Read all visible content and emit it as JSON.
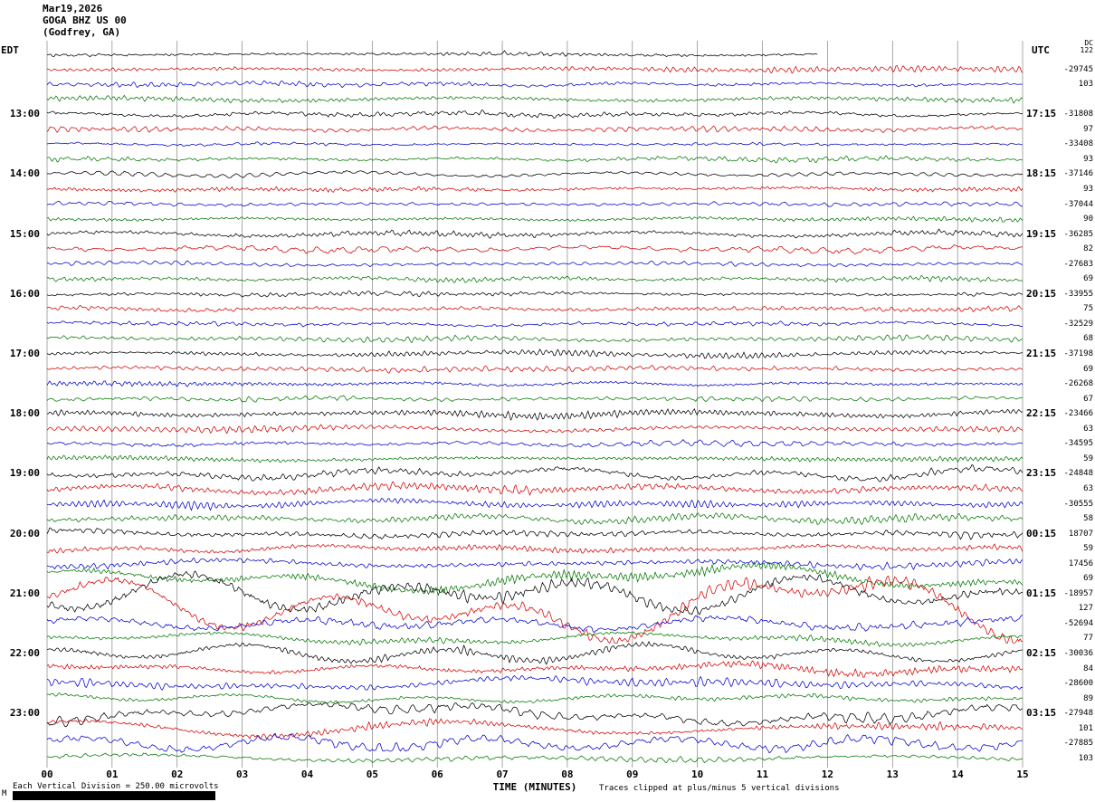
{
  "header": {
    "date": "Mar19,2026",
    "station": "GOGA BHZ US 00",
    "location": "(Godfrey, GA)"
  },
  "axes": {
    "left_tz": "EDT",
    "right_tz": "UTC",
    "x_label": "TIME (MINUTES)",
    "x_ticks": [
      "00",
      "01",
      "02",
      "03",
      "04",
      "05",
      "06",
      "07",
      "08",
      "09",
      "10",
      "11",
      "12",
      "13",
      "14",
      "15"
    ]
  },
  "corner": {
    "line1": "DC",
    "line2": "122"
  },
  "footer": {
    "scale_note": "Each Vertical Division =  250.00 microvolts",
    "clip_note": "Traces clipped at plus/minus 5 vertical divisions",
    "watermark": "M"
  },
  "colors": {
    "black": "#000000",
    "red": "#d40000",
    "blue": "#0000cc",
    "green": "#007700",
    "grid": "#707070"
  },
  "left_labels": [
    {
      "row": 4,
      "text": "13:00"
    },
    {
      "row": 8,
      "text": "14:00"
    },
    {
      "row": 12,
      "text": "15:00"
    },
    {
      "row": 16,
      "text": "16:00"
    },
    {
      "row": 20,
      "text": "17:00"
    },
    {
      "row": 24,
      "text": "18:00"
    },
    {
      "row": 28,
      "text": "19:00"
    },
    {
      "row": 32,
      "text": "20:00"
    },
    {
      "row": 36,
      "text": "21:00"
    },
    {
      "row": 40,
      "text": "22:00"
    },
    {
      "row": 44,
      "text": "23:00"
    }
  ],
  "right_labels": [
    {
      "row": 4,
      "text": "17:15"
    },
    {
      "row": 8,
      "text": "18:15"
    },
    {
      "row": 12,
      "text": "19:15"
    },
    {
      "row": 16,
      "text": "20:15"
    },
    {
      "row": 20,
      "text": "21:15"
    },
    {
      "row": 24,
      "text": "22:15"
    },
    {
      "row": 28,
      "text": "23:15"
    },
    {
      "row": 32,
      "text": "00:15"
    },
    {
      "row": 36,
      "text": "01:15"
    },
    {
      "row": 40,
      "text": "02:15"
    },
    {
      "row": 44,
      "text": "03:15"
    }
  ],
  "right_numbers": [
    {
      "row": 1,
      "text": "-29745"
    },
    {
      "row": 2,
      "text": "103"
    },
    {
      "row": 4,
      "text": "-31808"
    },
    {
      "row": 5,
      "text": "97"
    },
    {
      "row": 6,
      "text": "-33408"
    },
    {
      "row": 7,
      "text": "93"
    },
    {
      "row": 8,
      "text": "-37146"
    },
    {
      "row": 9,
      "text": "93"
    },
    {
      "row": 10,
      "text": "-37044"
    },
    {
      "row": 11,
      "text": "90"
    },
    {
      "row": 12,
      "text": "-36285"
    },
    {
      "row": 13,
      "text": "82"
    },
    {
      "row": 14,
      "text": "-27683"
    },
    {
      "row": 15,
      "text": "69"
    },
    {
      "row": 16,
      "text": "-33955"
    },
    {
      "row": 17,
      "text": "75"
    },
    {
      "row": 18,
      "text": "-32529"
    },
    {
      "row": 19,
      "text": "68"
    },
    {
      "row": 20,
      "text": "-37198"
    },
    {
      "row": 21,
      "text": "69"
    },
    {
      "row": 22,
      "text": "-26268"
    },
    {
      "row": 23,
      "text": "67"
    },
    {
      "row": 24,
      "text": "-23466"
    },
    {
      "row": 25,
      "text": "63"
    },
    {
      "row": 26,
      "text": "-34595"
    },
    {
      "row": 27,
      "text": "59"
    },
    {
      "row": 28,
      "text": "-24848"
    },
    {
      "row": 29,
      "text": "63"
    },
    {
      "row": 30,
      "text": "-30555"
    },
    {
      "row": 31,
      "text": "58"
    },
    {
      "row": 32,
      "text": "18707"
    },
    {
      "row": 33,
      "text": "59"
    },
    {
      "row": 34,
      "text": "17456"
    },
    {
      "row": 35,
      "text": "69"
    },
    {
      "row": 36,
      "text": "-18957"
    },
    {
      "row": 37,
      "text": "127"
    },
    {
      "row": 38,
      "text": "-52694"
    },
    {
      "row": 39,
      "text": "77"
    },
    {
      "row": 40,
      "text": "-30036"
    },
    {
      "row": 41,
      "text": "84"
    },
    {
      "row": 42,
      "text": "-28600"
    },
    {
      "row": 43,
      "text": "89"
    },
    {
      "row": 44,
      "text": "-27948"
    },
    {
      "row": 45,
      "text": "101"
    },
    {
      "row": 46,
      "text": "-27885"
    },
    {
      "row": 47,
      "text": "103"
    }
  ],
  "chart_data": {
    "type": "line",
    "title": "Helicorder seismogram GOGA BHZ US 00 (Godfrey, GA) Mar19,2026",
    "xlabel": "TIME (MINUTES)",
    "x_range": [
      0,
      15
    ],
    "minutes_per_line": 15,
    "lines_per_hour": 4,
    "color_cycle": [
      "black",
      "red",
      "blue",
      "green"
    ],
    "microvolts_per_division": 250.0,
    "clip_divisions": 5,
    "rows": [
      {
        "edt": "12:00",
        "color": "black",
        "amp": 1.1,
        "lf": 0.2,
        "end_frac": 0.79
      },
      {
        "edt": "12:15",
        "color": "red",
        "amp": 1.0,
        "lf": 0.2
      },
      {
        "edt": "12:30",
        "color": "blue",
        "amp": 0.9,
        "lf": 0.2
      },
      {
        "edt": "12:45",
        "color": "green",
        "amp": 0.95,
        "lf": 0.25
      },
      {
        "edt": "13:00",
        "color": "black",
        "amp": 1.15,
        "lf": 0.25
      },
      {
        "edt": "13:15",
        "color": "red",
        "amp": 1.0,
        "lf": 0.2
      },
      {
        "edt": "13:30",
        "color": "blue",
        "amp": 0.9,
        "lf": 0.2
      },
      {
        "edt": "13:45",
        "color": "green",
        "amp": 0.95,
        "lf": 0.2
      },
      {
        "edt": "14:00",
        "color": "black",
        "amp": 1.1,
        "lf": 0.25
      },
      {
        "edt": "14:15",
        "color": "red",
        "amp": 1.0,
        "lf": 0.2
      },
      {
        "edt": "14:30",
        "color": "blue",
        "amp": 0.9,
        "lf": 0.2
      },
      {
        "edt": "14:45",
        "color": "green",
        "amp": 0.95,
        "lf": 0.2
      },
      {
        "edt": "15:00",
        "color": "black",
        "amp": 1.1,
        "lf": 0.25
      },
      {
        "edt": "15:15",
        "color": "red",
        "amp": 1.15,
        "lf": 0.25
      },
      {
        "edt": "15:30",
        "color": "blue",
        "amp": 0.9,
        "lf": 0.2
      },
      {
        "edt": "15:45",
        "color": "green",
        "amp": 0.95,
        "lf": 0.2
      },
      {
        "edt": "16:00",
        "color": "black",
        "amp": 1.1,
        "lf": 0.25
      },
      {
        "edt": "16:15",
        "color": "red",
        "amp": 1.05,
        "lf": 0.25
      },
      {
        "edt": "16:30",
        "color": "blue",
        "amp": 0.95,
        "lf": 0.2
      },
      {
        "edt": "16:45",
        "color": "green",
        "amp": 1.0,
        "lf": 0.25
      },
      {
        "edt": "17:00",
        "color": "black",
        "amp": 1.1,
        "lf": 0.25
      },
      {
        "edt": "17:15",
        "color": "red",
        "amp": 1.0,
        "lf": 0.25
      },
      {
        "edt": "17:30",
        "color": "blue",
        "amp": 0.95,
        "lf": 0.2
      },
      {
        "edt": "17:45",
        "color": "green",
        "amp": 1.0,
        "lf": 0.25
      },
      {
        "edt": "18:00",
        "color": "black",
        "amp": 1.2,
        "lf": 0.3
      },
      {
        "edt": "18:15",
        "color": "red",
        "amp": 1.2,
        "lf": 0.3
      },
      {
        "edt": "18:30",
        "color": "blue",
        "amp": 1.05,
        "lf": 0.25
      },
      {
        "edt": "18:45",
        "color": "green",
        "amp": 1.0,
        "lf": 0.25
      },
      {
        "edt": "19:00",
        "color": "black",
        "amp": 1.6,
        "lf": 0.45
      },
      {
        "edt": "19:15",
        "color": "red",
        "amp": 1.5,
        "lf": 0.4
      },
      {
        "edt": "19:30",
        "color": "blue",
        "amp": 1.3,
        "lf": 0.35
      },
      {
        "edt": "19:45",
        "color": "green",
        "amp": 1.2,
        "lf": 0.3
      },
      {
        "edt": "20:00",
        "color": "black",
        "amp": 1.4,
        "lf": 0.4
      },
      {
        "edt": "20:15",
        "color": "red",
        "amp": 1.25,
        "lf": 0.35
      },
      {
        "edt": "20:30",
        "color": "blue",
        "amp": 1.4,
        "lf": 0.5
      },
      {
        "edt": "20:45",
        "color": "green",
        "amp": 1.9,
        "lf": 0.85
      },
      {
        "edt": "21:00",
        "color": "black",
        "amp": 2.6,
        "lf": 1.5
      },
      {
        "edt": "21:15",
        "color": "red",
        "amp": 2.6,
        "lf": 1.6
      },
      {
        "edt": "21:30",
        "color": "blue",
        "amp": 1.6,
        "lf": 0.8
      },
      {
        "edt": "21:45",
        "color": "green",
        "amp": 1.35,
        "lf": 0.6
      },
      {
        "edt": "22:00",
        "color": "black",
        "amp": 1.7,
        "lf": 0.8
      },
      {
        "edt": "22:15",
        "color": "red",
        "amp": 1.5,
        "lf": 0.65
      },
      {
        "edt": "22:30",
        "color": "blue",
        "amp": 1.45,
        "lf": 0.7
      },
      {
        "edt": "22:45",
        "color": "green",
        "amp": 1.25,
        "lf": 0.5
      },
      {
        "edt": "23:00",
        "color": "black",
        "amp": 1.7,
        "lf": 0.9
      },
      {
        "edt": "23:15",
        "color": "red",
        "amp": 1.6,
        "lf": 1.0
      },
      {
        "edt": "23:30",
        "color": "blue",
        "amp": 1.6,
        "lf": 1.1
      },
      {
        "edt": "23:45",
        "color": "green",
        "amp": 1.25,
        "lf": 0.5
      }
    ]
  }
}
